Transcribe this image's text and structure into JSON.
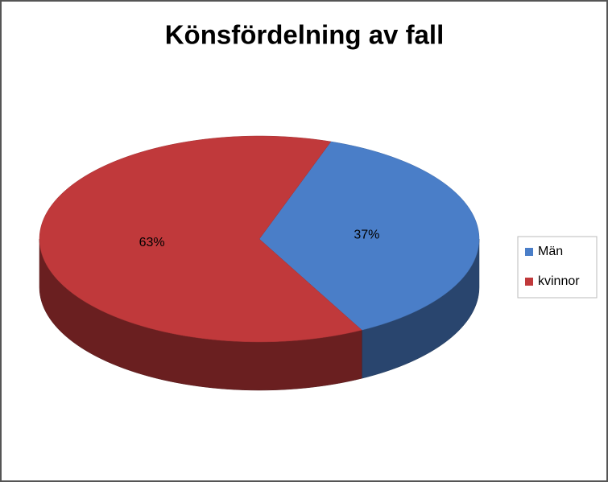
{
  "chart_data": {
    "type": "pie",
    "title": "Könsfördelning av fall",
    "categories": [
      "Män",
      "kvinnor"
    ],
    "values": [
      37,
      63
    ],
    "value_labels": [
      "37%",
      "63%"
    ],
    "colors": [
      "#4a7ec8",
      "#c0393b"
    ],
    "legend": "right"
  }
}
